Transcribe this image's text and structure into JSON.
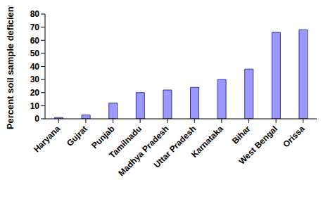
{
  "chart_data": {
    "type": "bar",
    "y_label": "Percent soil sample deficient",
    "categories": [
      "Haryana",
      "Gujrat",
      "Punjab",
      "Tamilnadu",
      "Madhya Pradesh",
      "Uttar Pradesh",
      "Karnataka",
      "Bihar",
      "West Bengal",
      "Orissa"
    ],
    "values": [
      1,
      3,
      12,
      20,
      22,
      24,
      30,
      38,
      66,
      68
    ],
    "color": "#9999ff",
    "ylim": [
      0,
      80
    ],
    "yticks": [
      0,
      10,
      20,
      30,
      40,
      50,
      60,
      70,
      80
    ],
    "grid": false
  }
}
